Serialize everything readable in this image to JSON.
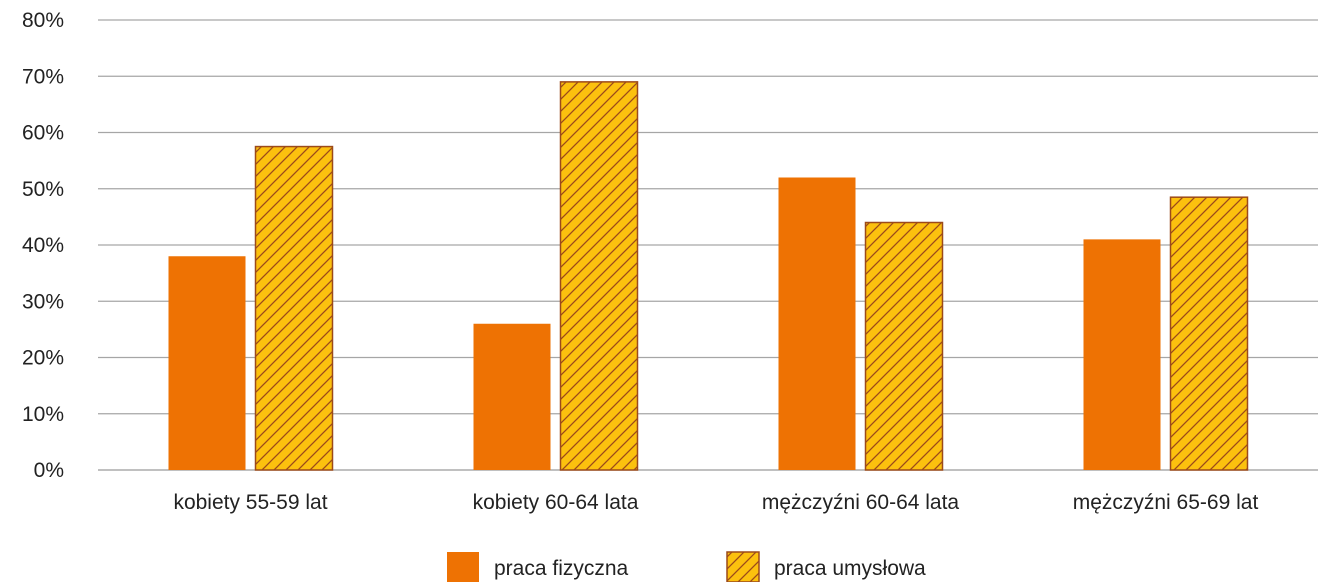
{
  "chart_data": {
    "type": "bar",
    "categories": [
      "kobiety 55-59 lat",
      "kobiety 60-64 lata",
      "mężczyźni 60-64 lata",
      "mężczyźni 65-69 lat"
    ],
    "series": [
      {
        "name": "praca fizyczna",
        "values": [
          38,
          26,
          52,
          41
        ],
        "color": "#EE7203",
        "pattern": "solid"
      },
      {
        "name": "praca umysłowa",
        "values": [
          57.5,
          69,
          44,
          48.5
        ],
        "color": "#FCC10E",
        "pattern": "hatched",
        "hatch_color": "#9C4A1A"
      }
    ],
    "yticks": [
      "0%",
      "10%",
      "20%",
      "30%",
      "40%",
      "50%",
      "60%",
      "70%",
      "80%"
    ],
    "ylim": [
      0,
      80
    ],
    "grid": true,
    "legend_position": "bottom-center",
    "title": "",
    "xlabel": "",
    "ylabel": ""
  }
}
